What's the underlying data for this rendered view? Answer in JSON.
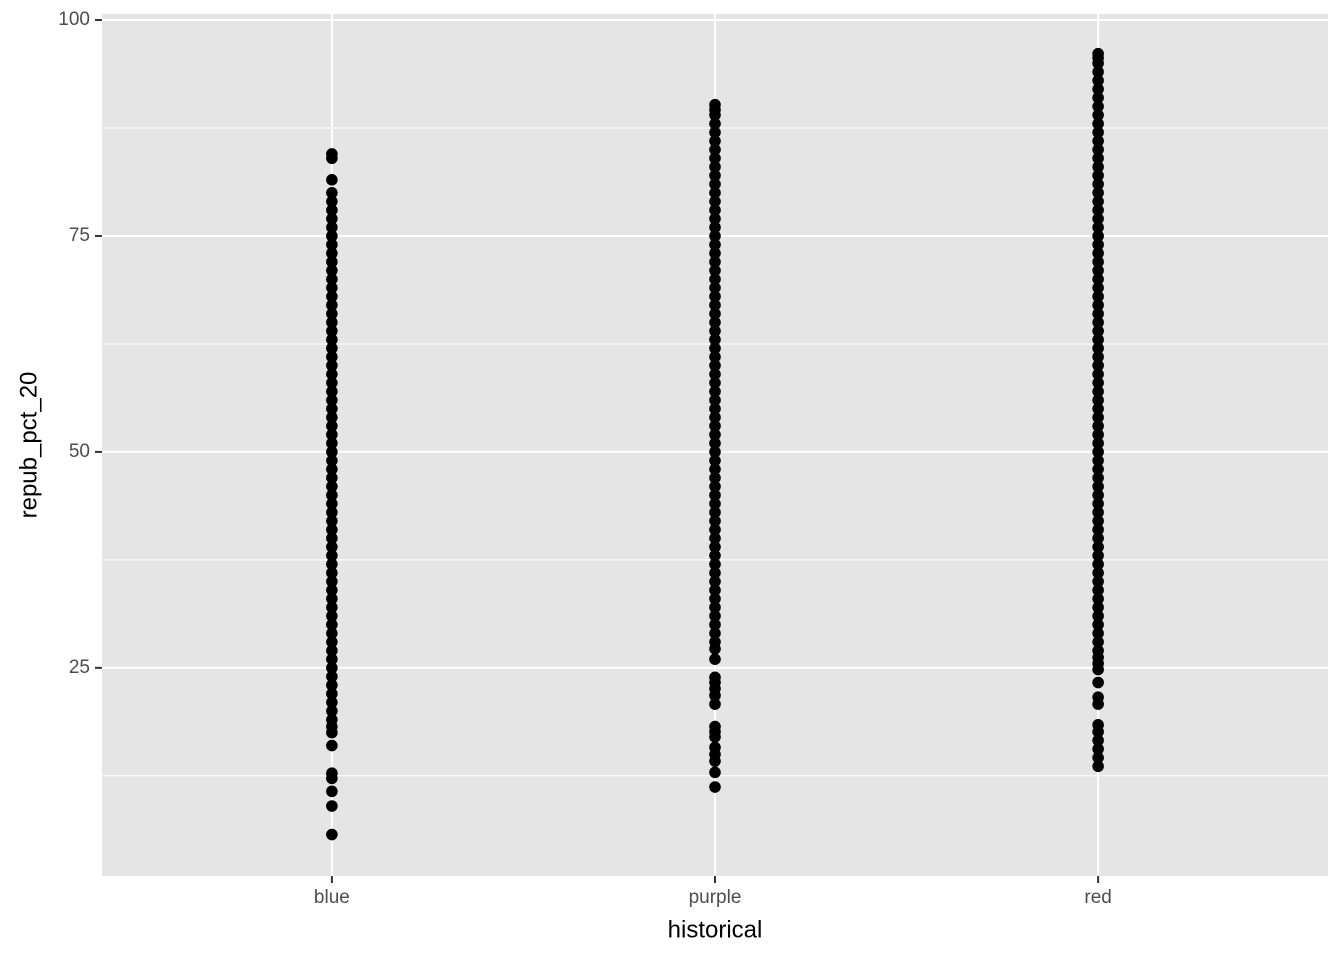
{
  "chart_data": {
    "type": "scatter",
    "x_label": "historical",
    "y_label": "repub_pct_20",
    "categories": [
      "blue",
      "purple",
      "red"
    ],
    "values": [
      [
        5.7,
        9,
        10.7,
        12.2,
        12.8,
        16,
        17.5,
        18.2,
        19,
        20,
        21,
        22,
        23,
        24,
        25,
        26,
        27,
        28,
        29,
        30,
        31,
        32,
        33,
        34,
        35,
        36,
        37,
        38,
        39,
        40,
        41,
        42,
        43,
        44,
        45,
        46,
        47,
        48,
        49,
        50,
        51,
        52,
        53,
        54,
        55,
        56,
        57,
        58,
        59,
        60,
        61,
        62,
        63,
        64,
        65,
        66,
        67,
        68,
        69,
        70,
        71,
        72,
        73,
        74,
        75,
        76,
        77,
        78,
        79,
        80,
        81.5,
        84,
        84.5
      ],
      [
        11.2,
        12.9,
        14.2,
        15,
        15.8,
        17,
        17.6,
        18.2,
        20.8,
        21.8,
        22.6,
        23.3,
        23.9,
        26,
        27.2,
        28,
        29,
        30,
        31,
        32,
        33,
        34,
        35,
        36,
        37,
        38,
        39,
        40,
        41,
        42,
        43,
        44,
        45,
        46,
        47,
        48,
        49,
        50,
        51,
        52,
        53,
        54,
        55,
        56,
        57,
        58,
        59,
        60,
        61,
        62,
        63,
        64,
        65,
        66,
        67,
        68,
        69,
        70,
        71,
        72,
        73,
        74,
        75,
        76,
        77,
        78,
        79,
        80,
        81,
        82,
        83,
        84,
        85,
        86,
        87,
        88,
        89,
        89.6,
        90.2
      ],
      [
        13.6,
        14.6,
        15.6,
        16.6,
        17.6,
        18.4,
        20.8,
        21.6,
        23.3,
        24.8,
        25.5,
        26.2,
        27,
        28,
        29,
        30,
        31,
        32,
        33,
        34,
        35,
        36,
        37,
        38,
        39,
        40,
        41,
        42,
        43,
        44,
        45,
        46,
        47,
        48,
        49,
        50,
        51,
        52,
        53,
        54,
        55,
        56,
        57,
        58,
        59,
        60,
        61,
        62,
        63,
        64,
        65,
        66,
        67,
        68,
        69,
        70,
        71,
        72,
        73,
        74,
        75,
        76,
        77,
        78,
        79,
        80,
        81,
        82,
        83,
        84,
        85,
        86,
        87,
        88,
        89,
        90,
        91,
        92,
        93,
        94,
        95,
        95.6,
        96.1
      ]
    ],
    "color": "#000000",
    "ylim": [
      0.9,
      100.7
    ],
    "yticks": [
      25,
      50,
      75,
      100
    ],
    "grid": true
  }
}
